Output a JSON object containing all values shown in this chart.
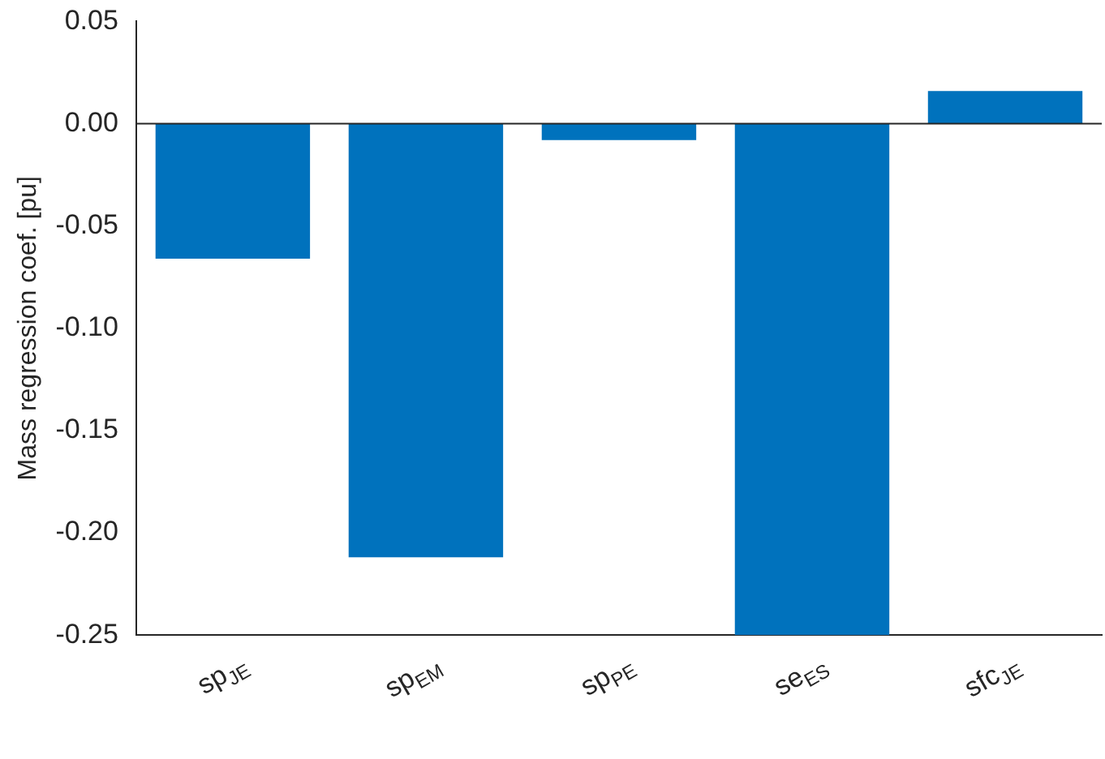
{
  "chart_data": {
    "type": "bar",
    "ylabel": "Mass regression coef. [pu]",
    "categories": [
      "sp$_{JE}$",
      "sp$_{EM}$",
      "sp$_{PE}$",
      "se$_{ES}$",
      "sfc$_{JE}$"
    ],
    "values": [
      -0.066,
      -0.212,
      -0.008,
      -0.25,
      0.016
    ],
    "color": "#0072bd",
    "ylim": [
      -0.25,
      0.05
    ],
    "yticks": [
      {
        "value": -0.25,
        "label": "-0.25"
      },
      {
        "value": -0.2,
        "label": "-0.20"
      },
      {
        "value": -0.15,
        "label": "-0.15"
      },
      {
        "value": -0.1,
        "label": "-0.10"
      },
      {
        "value": -0.05,
        "label": "-0.05"
      },
      {
        "value": 0,
        "label": "0.00"
      },
      {
        "value": 0.05,
        "label": "0.05"
      }
    ],
    "ref_lines": [
      {
        "axis": "y",
        "value": 0,
        "color": "#262626"
      }
    ],
    "grid": false,
    "legend": false
  }
}
